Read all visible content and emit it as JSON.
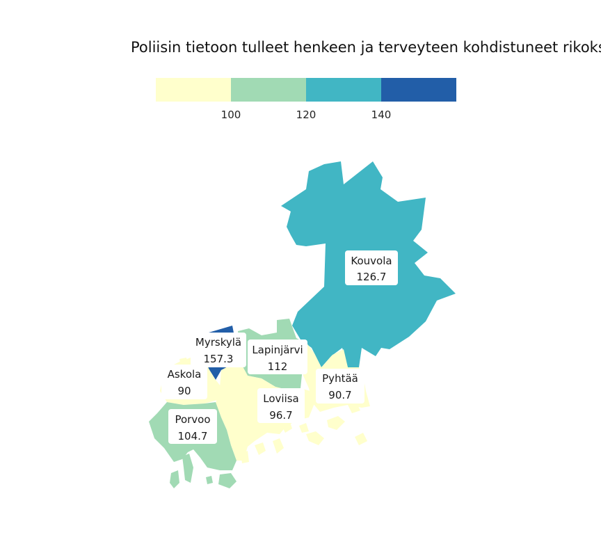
{
  "title": "Poliisin tietoon tulleet henkeen ja terveyteen kohdistuneet rikoks",
  "legend": {
    "breaks": [
      "100",
      "120",
      "140"
    ],
    "colors": [
      "#ffffcc",
      "#a1dab4",
      "#41b6c4",
      "#225ea8"
    ]
  },
  "regions": [
    {
      "name": "Kouvola",
      "value": "126.7",
      "color": "#41b6c4"
    },
    {
      "name": "Myrskylä",
      "value": "157.3",
      "color": "#225ea8"
    },
    {
      "name": "Lapinjärvi",
      "value": "112",
      "color": "#a1dab4"
    },
    {
      "name": "Askola",
      "value": "90",
      "color": "#ffffcc"
    },
    {
      "name": "Pyhtää",
      "value": "90.7",
      "color": "#ffffcc"
    },
    {
      "name": "Loviisa",
      "value": "96.7",
      "color": "#ffffcc"
    },
    {
      "name": "Porvoo",
      "value": "104.7",
      "color": "#a1dab4"
    }
  ]
}
